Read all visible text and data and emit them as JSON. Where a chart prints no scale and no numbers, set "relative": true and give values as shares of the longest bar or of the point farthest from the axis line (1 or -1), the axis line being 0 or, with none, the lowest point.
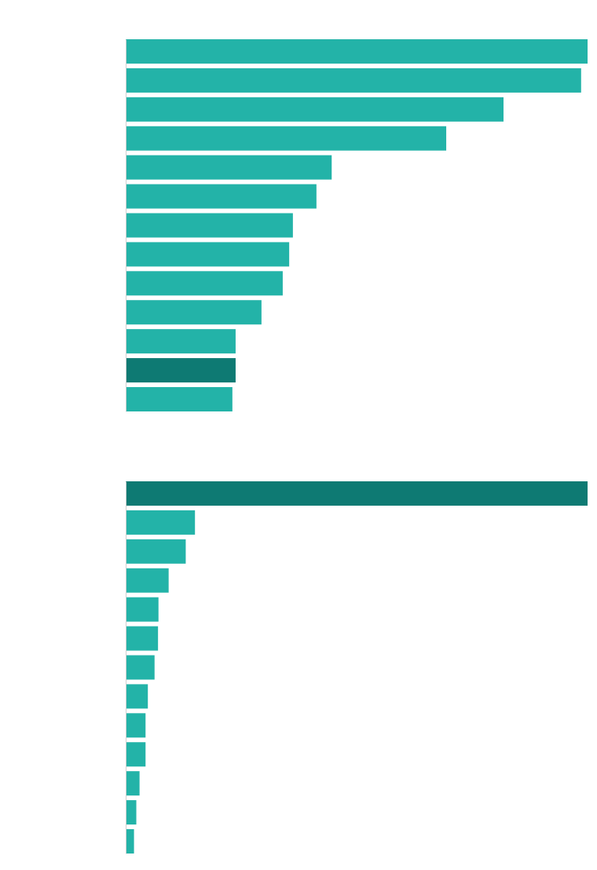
{
  "chart_data": [
    {
      "type": "bar",
      "orientation": "horizontal",
      "relative": true,
      "categories": [
        null,
        null,
        null,
        null,
        null,
        null,
        null,
        null,
        null,
        null,
        null,
        null,
        null
      ],
      "values": [
        1,
        0.986,
        0.818,
        0.694,
        0.446,
        0.413,
        0.362,
        0.354,
        0.34,
        0.294,
        0.238,
        0.238,
        0.231
      ],
      "colors": [
        "#23b3a8",
        "#23b3a8",
        "#23b3a8",
        "#23b3a8",
        "#23b3a8",
        "#23b3a8",
        "#23b3a8",
        "#23b3a8",
        "#23b3a8",
        "#23b3a8",
        "#23b3a8",
        "#0e7a73",
        "#23b3a8"
      ]
    },
    {
      "type": "bar",
      "orientation": "horizontal",
      "relative": true,
      "categories": [
        null,
        null,
        null,
        null,
        null,
        null,
        null,
        null,
        null,
        null,
        null,
        null,
        null
      ],
      "values": [
        1,
        0.15,
        0.13,
        0.093,
        0.071,
        0.07,
        0.0625,
        0.048,
        0.043,
        0.043,
        0.03,
        0.023,
        0.018
      ],
      "colors": [
        "#0e7a73",
        "#23b3a8",
        "#23b3a8",
        "#23b3a8",
        "#23b3a8",
        "#23b3a8",
        "#23b3a8",
        "#23b3a8",
        "#23b3a8",
        "#23b3a8",
        "#23b3a8",
        "#23b3a8",
        "#23b3a8"
      ]
    }
  ]
}
